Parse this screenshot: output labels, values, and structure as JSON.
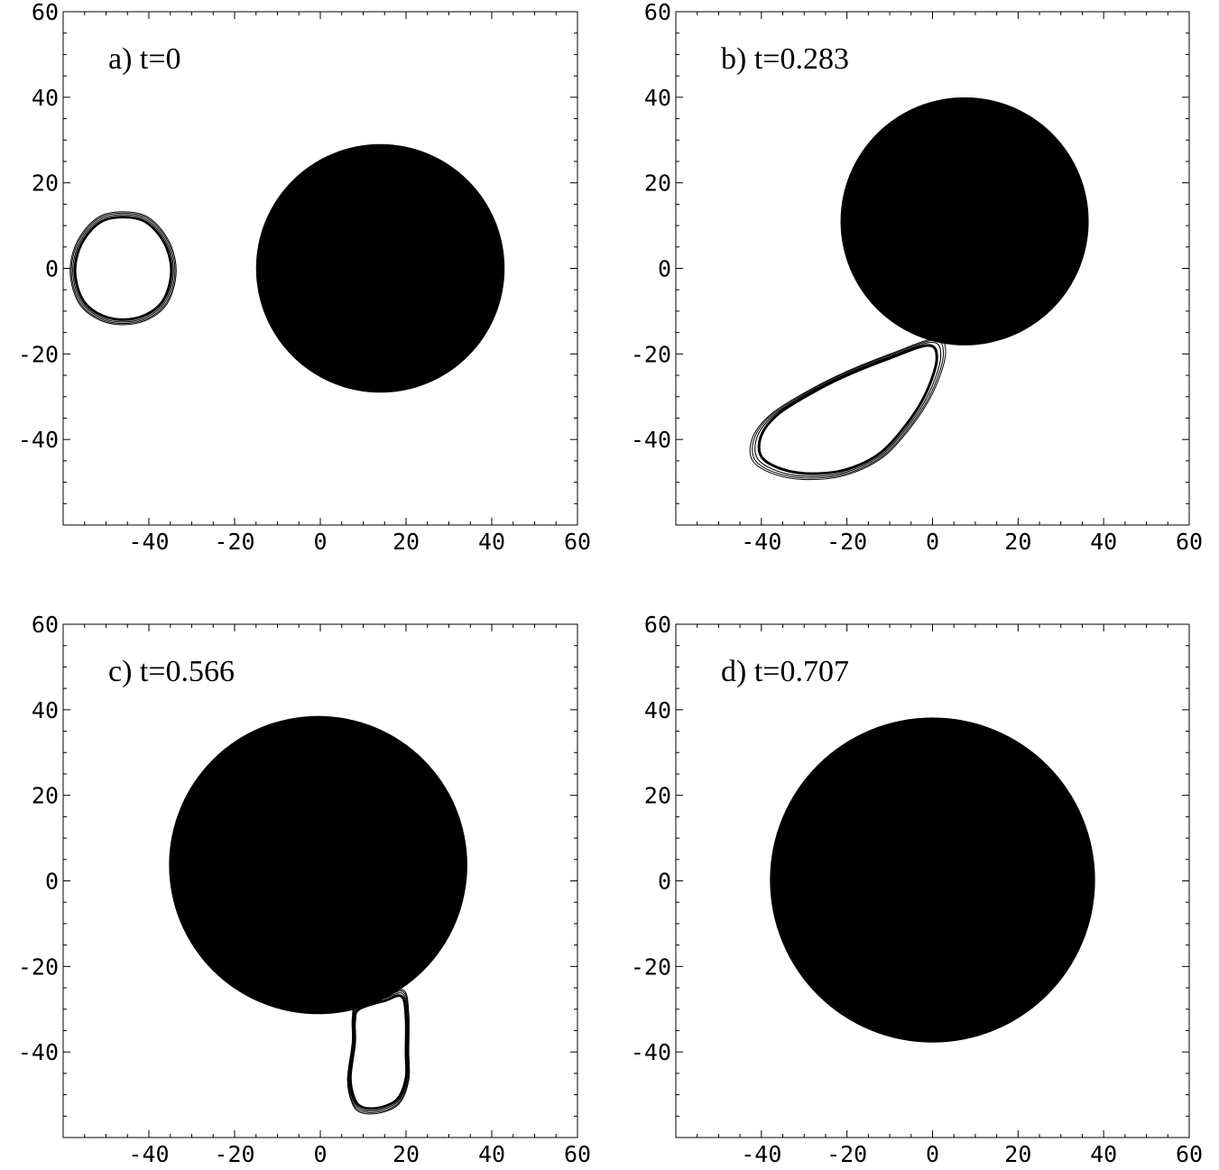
{
  "chart_data": [
    {
      "type": "contour",
      "title": "a) t=0",
      "xlabel": "",
      "ylabel": "",
      "xlim": [
        -60,
        60
      ],
      "ylim": [
        -60,
        60
      ],
      "xticks": [
        -40,
        -20,
        0,
        20,
        40,
        60
      ],
      "xtick_labels": [
        "-40",
        "-20",
        "0",
        "20",
        "40",
        "60"
      ],
      "yticks": [
        60,
        40,
        20,
        0,
        -20,
        -40
      ],
      "ytick_labels": [
        "60",
        "40",
        "20",
        "0",
        "-20",
        "-40"
      ],
      "filled_disk": {
        "cx": 14,
        "cy": 0,
        "r": 29
      },
      "contours": [
        {
          "name": "ring",
          "points": [
            [
              -46,
              12
            ],
            [
              -41,
              11
            ],
            [
              -37,
              7
            ],
            [
              -35,
              2
            ],
            [
              -35,
              -3
            ],
            [
              -37,
              -8
            ],
            [
              -41,
              -11
            ],
            [
              -46,
              -12
            ],
            [
              -51,
              -11
            ],
            [
              -55,
              -8
            ],
            [
              -57,
              -3
            ],
            [
              -57,
              2
            ],
            [
              -55,
              7
            ],
            [
              -51,
              11
            ]
          ]
        }
      ]
    },
    {
      "type": "contour",
      "title": "b) t=0.283",
      "xlabel": "",
      "ylabel": "",
      "xlim": [
        -60,
        60
      ],
      "ylim": [
        -60,
        60
      ],
      "xticks": [
        -40,
        -20,
        0,
        20,
        40,
        60
      ],
      "xtick_labels": [
        "-40",
        "-20",
        "0",
        "20",
        "40",
        "60"
      ],
      "yticks": [
        60,
        40,
        20,
        0,
        -20,
        -40
      ],
      "ytick_labels": [
        "60",
        "40",
        "20",
        "0",
        "-20",
        "-40"
      ],
      "filled_disk": {
        "cx": 7.5,
        "cy": 11,
        "r": 29
      },
      "contours": [
        {
          "name": "tail",
          "points": [
            [
              -1,
              -18
            ],
            [
              -10,
              -21
            ],
            [
              -20,
              -25
            ],
            [
              -28,
              -29
            ],
            [
              -36,
              -34
            ],
            [
              -40,
              -39
            ],
            [
              -40,
              -44
            ],
            [
              -35,
              -47
            ],
            [
              -28,
              -48
            ],
            [
              -20,
              -47
            ],
            [
              -12,
              -43
            ],
            [
              -5,
              -35
            ],
            [
              -1,
              -28
            ],
            [
              1,
              -21
            ]
          ]
        }
      ]
    },
    {
      "type": "contour",
      "title": "c) t=0.566",
      "xlabel": "",
      "ylabel": "",
      "xlim": [
        -60,
        60
      ],
      "ylim": [
        -60,
        60
      ],
      "xticks": [
        -40,
        -20,
        0,
        20,
        40,
        60
      ],
      "xtick_labels": [
        "-40",
        "-20",
        "0",
        "20",
        "40",
        "60"
      ],
      "yticks": [
        60,
        40,
        20,
        0,
        -20,
        -40
      ],
      "ytick_labels": [
        "60",
        "40",
        "20",
        "0",
        "-20",
        "-40"
      ],
      "filled_disk": {
        "cx": -0.5,
        "cy": 3.7,
        "r": 34.8
      },
      "contours": [
        {
          "name": "tail",
          "points": [
            [
              9,
              -30
            ],
            [
              15,
              -28
            ],
            [
              19,
              -27
            ],
            [
              20,
              -32
            ],
            [
              20,
              -40
            ],
            [
              20,
              -46
            ],
            [
              18,
              -51
            ],
            [
              14,
              -53
            ],
            [
              10,
              -53
            ],
            [
              8,
              -51
            ],
            [
              7,
              -46
            ],
            [
              8,
              -38
            ],
            [
              8,
              -33
            ]
          ]
        }
      ]
    },
    {
      "type": "contour",
      "title": "d) t=0.707",
      "xlabel": "",
      "ylabel": "",
      "xlim": [
        -60,
        60
      ],
      "ylim": [
        -60,
        60
      ],
      "xticks": [
        -40,
        -20,
        0,
        20,
        40,
        60
      ],
      "xtick_labels": [
        "-40",
        "-20",
        "0",
        "20",
        "40",
        "60"
      ],
      "yticks": [
        60,
        40,
        20,
        0,
        -20,
        -40
      ],
      "ytick_labels": [
        "60",
        "40",
        "20",
        "0",
        "-20",
        "-40"
      ],
      "filled_disk": {
        "cx": 0,
        "cy": 0.2,
        "r": 38
      },
      "contours": []
    }
  ]
}
